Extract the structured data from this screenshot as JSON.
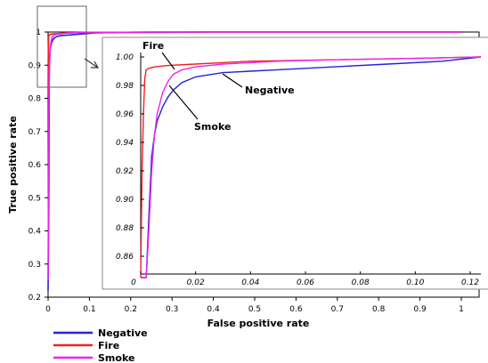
{
  "chart_data": [
    {
      "type": "line",
      "xlabel": "False positive rate",
      "ylabel": "True positive rate",
      "xlim": [
        0,
        1
      ],
      "ylim": [
        0.2,
        1
      ],
      "xticks": [
        0,
        0.1,
        0.2,
        0.3,
        0.4,
        0.5,
        0.6,
        0.7,
        0.8,
        0.9,
        1
      ],
      "xtick_labels": [
        "0",
        "0.1",
        "0.2",
        "0.3",
        "0.4",
        "0.5",
        "0.6",
        "0.7",
        "0.8",
        "0.9",
        "1"
      ],
      "yticks": [
        0.2,
        0.3,
        0.4,
        0.5,
        0.6,
        0.7,
        0.8,
        0.9,
        1
      ],
      "ytick_labels": [
        "0.2",
        "0.3",
        "0.4",
        "0.5",
        "0.6",
        "0.7",
        "0.8",
        "0.9",
        "1"
      ],
      "grid": false,
      "legend_position": "bottom-left",
      "series": [
        {
          "name": "Negative",
          "color": "#2222dd",
          "x": [
            0,
            0.002,
            0.003,
            0.004,
            0.005,
            0.006,
            0.008,
            0.01,
            0.012,
            0.015,
            0.02,
            0.03,
            0.04,
            0.05,
            0.07,
            0.09,
            0.11,
            0.14,
            0.18,
            0.25,
            0.4,
            0.6,
            0.8,
            1.0
          ],
          "y": [
            0.22,
            0.52,
            0.89,
            0.93,
            0.945,
            0.955,
            0.965,
            0.972,
            0.977,
            0.982,
            0.986,
            0.989,
            0.99,
            0.991,
            0.993,
            0.995,
            0.997,
            0.998,
            0.999,
            0.999,
            1.0,
            1.0,
            1.0,
            1.0
          ]
        },
        {
          "name": "Fire",
          "color": "#ee2222",
          "x": [
            0,
            0.0005,
            0.001,
            0.0015,
            0.002,
            0.003,
            0.005,
            0.01,
            0.02,
            0.04,
            0.07,
            0.1,
            0.15,
            0.25,
            0.4,
            0.6,
            0.8,
            1.0
          ],
          "y": [
            0.8,
            0.92,
            0.96,
            0.985,
            0.991,
            0.992,
            0.993,
            0.994,
            0.995,
            0.997,
            0.998,
            0.999,
            0.999,
            1.0,
            1.0,
            1.0,
            1.0,
            1.0
          ]
        },
        {
          "name": "Smoke",
          "color": "#ee22ee",
          "x": [
            0,
            0.002,
            0.003,
            0.004,
            0.005,
            0.006,
            0.008,
            0.01,
            0.012,
            0.015,
            0.02,
            0.03,
            0.04,
            0.05,
            0.07,
            0.1,
            0.15,
            0.25,
            0.4,
            0.6,
            0.8,
            1.0
          ],
          "y": [
            0.25,
            0.8,
            0.88,
            0.92,
            0.945,
            0.96,
            0.975,
            0.983,
            0.988,
            0.991,
            0.993,
            0.995,
            0.996,
            0.997,
            0.998,
            0.999,
            0.999,
            1.0,
            1.0,
            1.0,
            1.0,
            1.0
          ]
        }
      ]
    },
    {
      "type": "line",
      "xlim": [
        0,
        0.12
      ],
      "ylim": [
        0.84,
        1.0
      ],
      "xticks": [
        0,
        0.02,
        0.04,
        0.06,
        0.08,
        0.1,
        0.12
      ],
      "xtick_labels": [
        "0",
        "0.02",
        "0.04",
        "0.06",
        "0.08",
        "0.10",
        "0.12"
      ],
      "yticks": [
        0.86,
        0.88,
        0.9,
        0.92,
        0.94,
        0.96,
        0.98,
        1.0
      ],
      "ytick_labels": [
        "0.86",
        "0.88",
        "0.90",
        "0.92",
        "0.94",
        "0.96",
        "0.98",
        "1.00"
      ],
      "annotations": [
        "Fire",
        "Negative",
        "Smoke"
      ]
    }
  ],
  "legend": [
    {
      "label": "Negative",
      "color": "#2222dd"
    },
    {
      "label": "Fire",
      "color": "#ee2222"
    },
    {
      "label": "Smoke",
      "color": "#ee22ee"
    }
  ]
}
